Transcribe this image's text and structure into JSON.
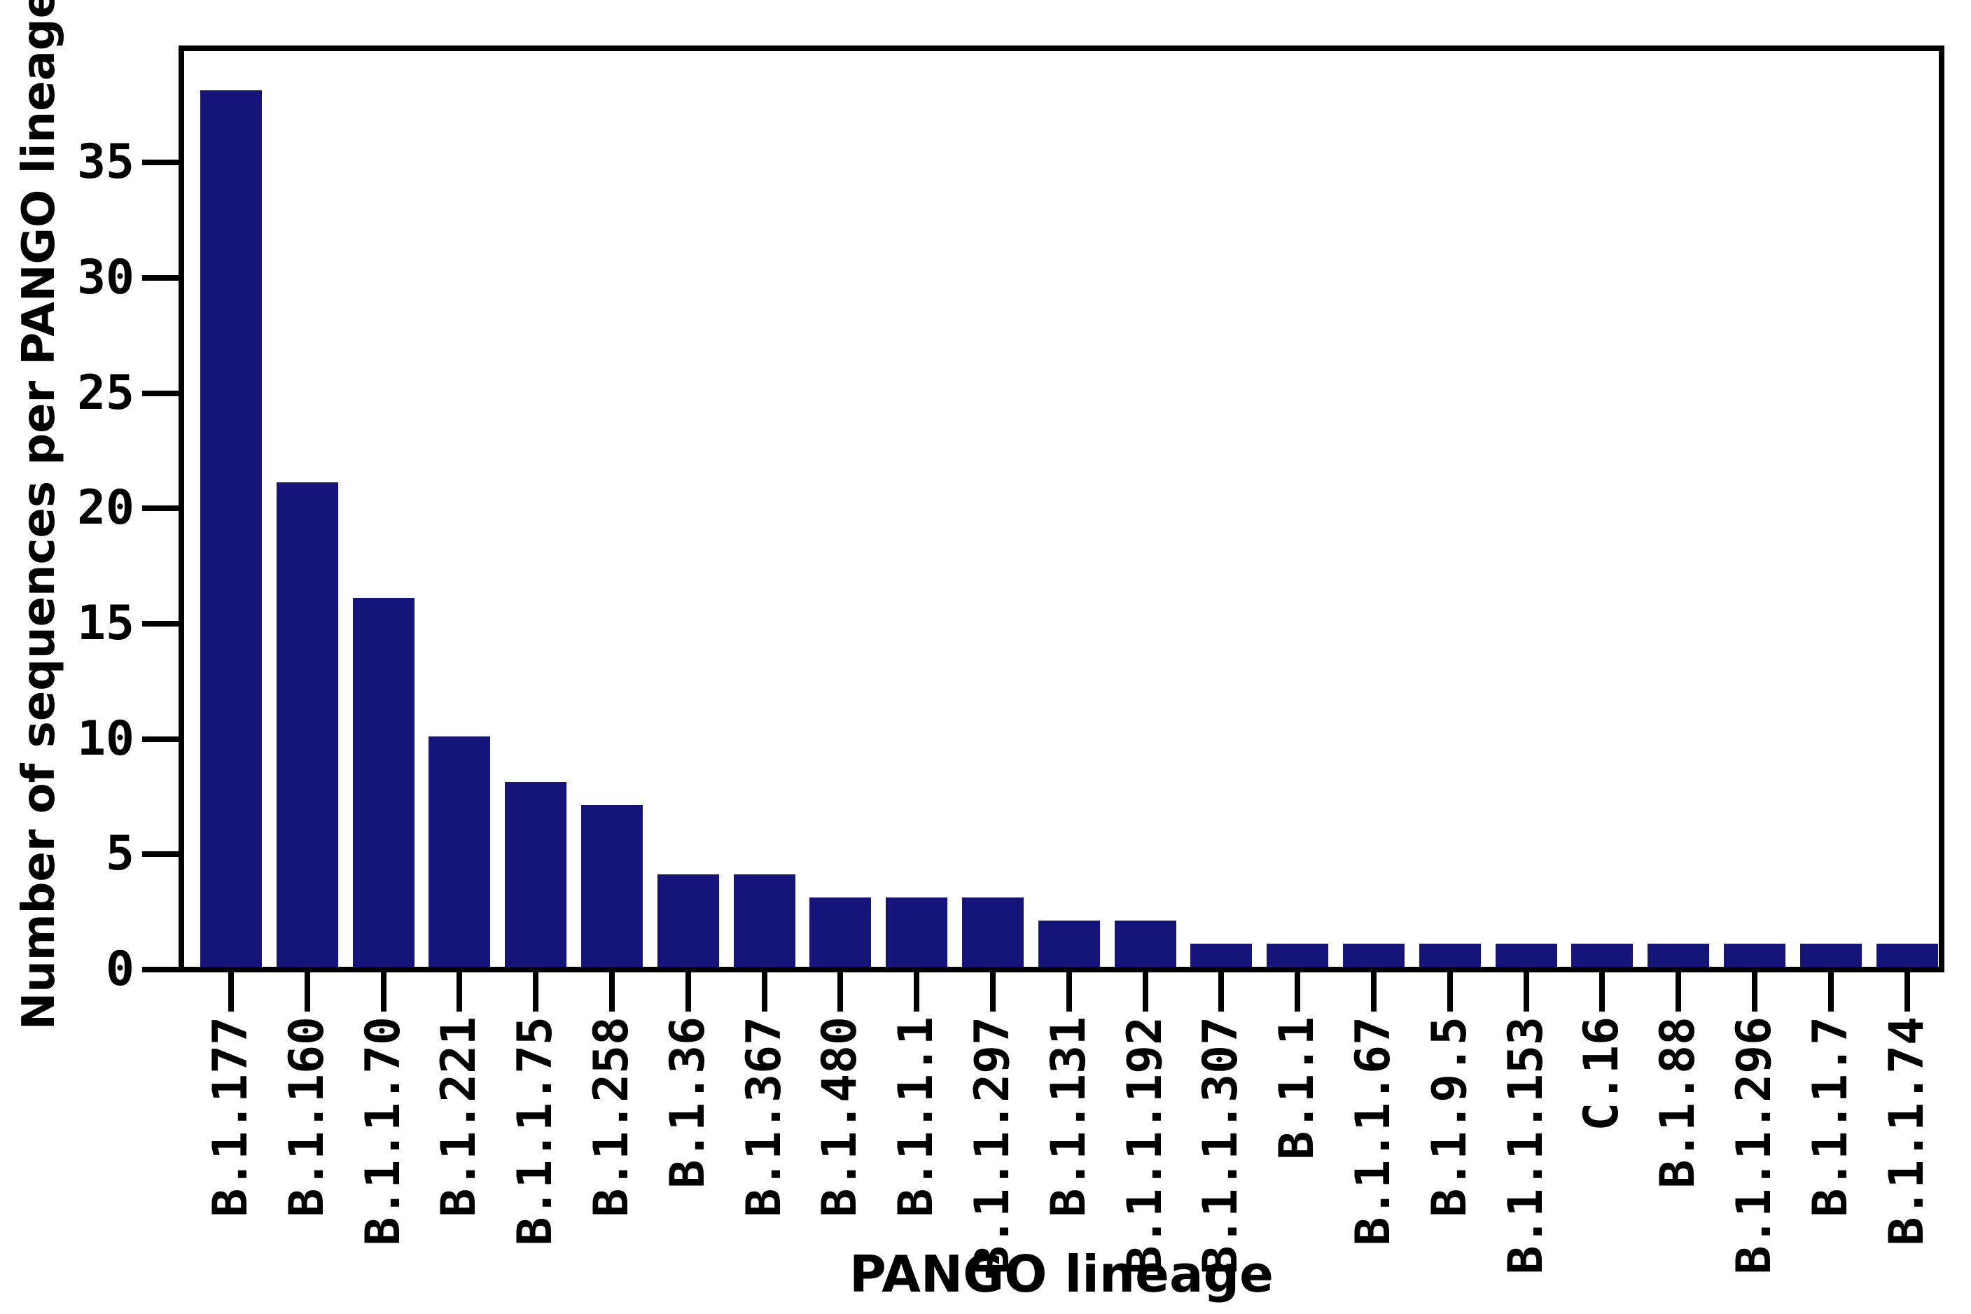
{
  "chart_data": {
    "type": "bar",
    "title": "",
    "xlabel": "PANGO lineage",
    "ylabel": "Number of sequences per PANGO lineage",
    "categories": [
      "B.1.177",
      "B.1.160",
      "B.1.1.70",
      "B.1.221",
      "B.1.1.75",
      "B.1.258",
      "B.1.36",
      "B.1.367",
      "B.1.480",
      "B.1.1.1",
      "B.1.1.297",
      "B.1.131",
      "B.1.1.192",
      "B.1.1.307",
      "B.1.1",
      "B.1.1.67",
      "B.1.9.5",
      "B.1.1.153",
      "C.16",
      "B.1.88",
      "B.1.1.296",
      "B.1.1.7",
      "B.1.1.74"
    ],
    "values": [
      38,
      21,
      16,
      10,
      8,
      7,
      4,
      4,
      3,
      3,
      3,
      2,
      2,
      1,
      1,
      1,
      1,
      1,
      1,
      1,
      1,
      1,
      1
    ],
    "yticks": [
      0,
      5,
      10,
      15,
      20,
      25,
      30,
      35
    ],
    "ylim": [
      0,
      40
    ],
    "grid": false,
    "legend_position": "none",
    "bar_color": "#15147a",
    "axis_color": "#000000",
    "background_color": "#ffffff"
  }
}
